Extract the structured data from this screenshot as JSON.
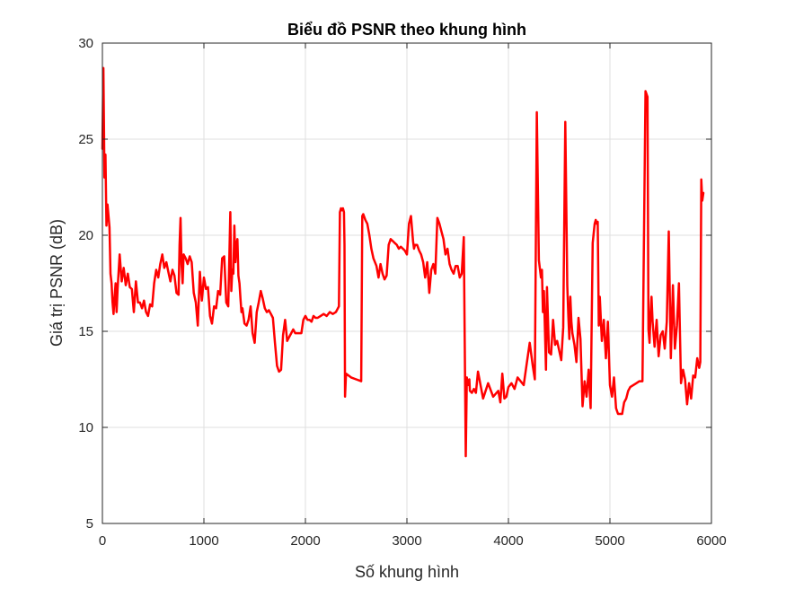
{
  "chart_data": {
    "type": "line",
    "title": "Biểu đồ PSNR theo khung hình",
    "xlabel": "Số khung hình",
    "ylabel": "Giá trị PSNR (dB)",
    "xlim": [
      0,
      6000
    ],
    "ylim": [
      5,
      30
    ],
    "xticks": [
      0,
      1000,
      2000,
      3000,
      4000,
      5000,
      6000
    ],
    "yticks": [
      5,
      10,
      15,
      20,
      25,
      30
    ],
    "grid": true,
    "series": [
      {
        "color": "#ff0000",
        "x": [
          0,
          10,
          20,
          30,
          40,
          50,
          60,
          70,
          80,
          90,
          100,
          110,
          120,
          130,
          140,
          150,
          170,
          190,
          210,
          230,
          250,
          270,
          290,
          310,
          330,
          350,
          370,
          390,
          410,
          430,
          450,
          470,
          490,
          510,
          530,
          550,
          570,
          590,
          610,
          630,
          650,
          670,
          690,
          710,
          730,
          750,
          760,
          770,
          780,
          790,
          800,
          820,
          840,
          860,
          880,
          900,
          920,
          940,
          960,
          980,
          1000,
          1020,
          1040,
          1060,
          1080,
          1100,
          1120,
          1140,
          1160,
          1180,
          1200,
          1220,
          1240,
          1260,
          1270,
          1280,
          1290,
          1300,
          1310,
          1320,
          1330,
          1340,
          1350,
          1360,
          1370,
          1380,
          1400,
          1420,
          1440,
          1460,
          1480,
          1500,
          1520,
          1540,
          1560,
          1580,
          1600,
          1620,
          1640,
          1660,
          1680,
          1700,
          1720,
          1740,
          1760,
          1780,
          1800,
          1820,
          1840,
          1860,
          1880,
          1900,
          1920,
          1940,
          1960,
          1980,
          2000,
          2020,
          2040,
          2060,
          2080,
          2100,
          2120,
          2150,
          2180,
          2210,
          2240,
          2270,
          2300,
          2320,
          2330,
          2340,
          2350,
          2360,
          2370,
          2380,
          2385,
          2390,
          2400,
          2450,
          2500,
          2550,
          2560,
          2570,
          2590,
          2610,
          2630,
          2650,
          2670,
          2700,
          2720,
          2740,
          2760,
          2780,
          2800,
          2820,
          2840,
          2860,
          2880,
          2900,
          2920,
          2940,
          2960,
          2980,
          3000,
          3020,
          3040,
          3060,
          3070,
          3080,
          3100,
          3120,
          3140,
          3160,
          3180,
          3200,
          3220,
          3240,
          3260,
          3280,
          3300,
          3320,
          3330,
          3340,
          3360,
          3380,
          3400,
          3420,
          3440,
          3460,
          3480,
          3500,
          3520,
          3540,
          3560,
          3580,
          3590,
          3600,
          3610,
          3615,
          3620,
          3640,
          3660,
          3680,
          3700,
          3750,
          3800,
          3850,
          3900,
          3920,
          3940,
          3960,
          3980,
          4000,
          4030,
          4060,
          4090,
          4120,
          4150,
          4180,
          4210,
          4240,
          4260,
          4280,
          4300,
          4320,
          4330,
          4340,
          4350,
          4360,
          4370,
          4380,
          4400,
          4420,
          4440,
          4460,
          4480,
          4500,
          4520,
          4540,
          4560,
          4580,
          4590,
          4600,
          4610,
          4620,
          4630,
          4650,
          4670,
          4690,
          4710,
          4730,
          4750,
          4770,
          4790,
          4810,
          4830,
          4850,
          4860,
          4870,
          4880,
          4890,
          4900,
          4920,
          4940,
          4960,
          4980,
          5000,
          5020,
          5040,
          5060,
          5080,
          5100,
          5120,
          5140,
          5160,
          5180,
          5200,
          5230,
          5260,
          5290,
          5320,
          5350,
          5370,
          5380,
          5390,
          5400,
          5410,
          5420,
          5440,
          5460,
          5480,
          5500,
          5520,
          5540,
          5560,
          5580,
          5600,
          5620,
          5640,
          5660,
          5680,
          5700,
          5720,
          5740,
          5760,
          5780,
          5800,
          5820,
          5840,
          5860,
          5880,
          5890,
          5900,
          5910,
          5920
        ],
        "values": [
          24.5,
          28.7,
          23.0,
          24.2,
          20.5,
          21.6,
          21.0,
          20.4,
          18.0,
          17.5,
          16.5,
          15.9,
          16.8,
          17.5,
          16.0,
          17.2,
          19.0,
          17.6,
          18.3,
          17.4,
          18.0,
          17.3,
          17.2,
          16.0,
          17.6,
          16.5,
          16.5,
          16.2,
          16.6,
          16.0,
          15.8,
          16.4,
          16.3,
          17.5,
          18.2,
          17.8,
          18.5,
          19.0,
          18.3,
          18.6,
          18.1,
          17.6,
          18.2,
          17.9,
          17.0,
          16.9,
          19.5,
          20.9,
          18.5,
          17.5,
          19.0,
          18.8,
          18.5,
          18.9,
          18.6,
          17.0,
          16.5,
          15.3,
          18.1,
          16.6,
          17.8,
          17.2,
          17.3,
          15.8,
          15.4,
          16.3,
          16.2,
          17.1,
          16.9,
          18.8,
          18.9,
          16.5,
          16.3,
          21.2,
          17.1,
          18.2,
          18.0,
          20.5,
          18.6,
          19.5,
          19.8,
          17.9,
          17.5,
          16.7,
          16.0,
          16.2,
          15.4,
          15.3,
          15.6,
          16.3,
          14.9,
          14.4,
          16.0,
          16.5,
          17.1,
          16.7,
          16.2,
          16.0,
          16.1,
          15.9,
          15.7,
          14.4,
          13.2,
          12.9,
          13.0,
          14.8,
          15.6,
          14.5,
          14.7,
          14.9,
          15.1,
          14.9,
          14.9,
          14.9,
          14.9,
          15.6,
          15.8,
          15.6,
          15.6,
          15.5,
          15.8,
          15.7,
          15.7,
          15.8,
          15.9,
          15.8,
          16.0,
          15.9,
          16.0,
          16.2,
          16.3,
          21.2,
          21.4,
          21.3,
          21.4,
          21.2,
          19.5,
          11.6,
          12.8,
          12.6,
          12.5,
          12.4,
          21.0,
          21.1,
          20.8,
          20.6,
          20.0,
          19.3,
          18.8,
          18.4,
          17.8,
          18.5,
          18.0,
          17.7,
          17.9,
          19.5,
          19.8,
          19.7,
          19.6,
          19.5,
          19.3,
          19.4,
          19.3,
          19.2,
          19.0,
          20.6,
          21.0,
          19.7,
          19.3,
          19.5,
          19.5,
          19.2,
          19.0,
          18.6,
          17.8,
          18.6,
          17.0,
          18.2,
          18.5,
          18.0,
          20.9,
          20.6,
          20.4,
          20.2,
          19.8,
          19.0,
          19.3,
          18.5,
          18.2,
          18.0,
          18.4,
          18.4,
          17.8,
          18.0,
          19.9,
          8.5,
          12.6,
          12.2,
          12.3,
          12.5,
          11.9,
          11.8,
          12.0,
          11.8,
          12.9,
          11.5,
          12.3,
          11.6,
          11.9,
          11.3,
          12.8,
          11.5,
          11.6,
          12.1,
          12.3,
          12.0,
          12.6,
          12.4,
          12.2,
          13.3,
          14.4,
          13.2,
          12.5,
          26.4,
          18.7,
          17.8,
          18.2,
          16.0,
          17.1,
          15.0,
          13.0,
          17.3,
          13.9,
          13.8,
          15.6,
          14.3,
          14.5,
          14.0,
          13.5,
          15.2,
          25.9,
          17.4,
          15.8,
          14.6,
          16.8,
          15.5,
          14.9,
          14.3,
          13.4,
          15.7,
          14.6,
          11.1,
          12.4,
          11.6,
          13.0,
          11.0,
          19.6,
          20.6,
          20.8,
          20.6,
          20.7,
          15.3,
          16.8,
          14.5,
          15.6,
          13.6,
          15.5,
          12.2,
          11.6,
          12.6,
          11.0,
          10.7,
          10.7,
          10.7,
          11.3,
          11.5,
          11.9,
          12.1,
          12.2,
          12.3,
          12.4,
          12.4,
          27.5,
          27.2,
          15.1,
          14.4,
          15.9,
          16.8,
          15.5,
          14.2,
          15.6,
          13.7,
          14.8,
          15.0,
          14.1,
          15.5,
          20.2,
          13.6,
          17.4,
          14.1,
          15.3,
          17.5,
          12.3,
          13.0,
          12.5,
          11.2,
          12.3,
          11.5,
          12.7,
          12.6,
          13.6,
          13.1,
          13.4,
          22.9,
          21.8,
          22.2
        ]
      }
    ]
  }
}
